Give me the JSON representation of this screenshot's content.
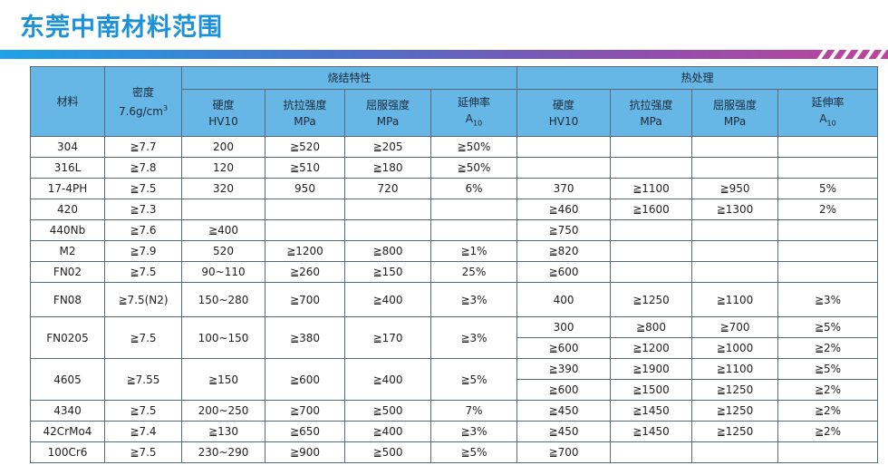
{
  "header": {
    "title": "东莞中南材料范围"
  },
  "table": {
    "columns": {
      "material": "材料",
      "density": {
        "name": "密度",
        "unit": "7.6g/cm",
        "sup": "3"
      },
      "groups": [
        {
          "name": "烧结特性",
          "fields": [
            {
              "name": "硬度",
              "unit": "HV10"
            },
            {
              "name": "抗拉强度",
              "unit": "MPa"
            },
            {
              "name": "屈服强度",
              "unit": "MPa"
            },
            {
              "name": "延伸率",
              "unit": "A",
              "sub": "10"
            }
          ]
        },
        {
          "name": "热处理",
          "fields": [
            {
              "name": "硬度",
              "unit": "HV10"
            },
            {
              "name": "抗拉强度",
              "unit": "MPa"
            },
            {
              "name": "屈服强度",
              "unit": "MPa"
            },
            {
              "name": "延伸率",
              "unit": "A",
              "sub": "10"
            }
          ]
        }
      ]
    },
    "rows": [
      {
        "material": "304",
        "density": "≧7.7",
        "sinter": [
          "200",
          "≧520",
          "≧205",
          "≧50%"
        ],
        "heat": [
          [
            null,
            null,
            null,
            null
          ]
        ]
      },
      {
        "material": "316L",
        "density": "≧7.8",
        "sinter": [
          "120",
          "≧510",
          "≧180",
          "≧50%"
        ],
        "heat": [
          [
            null,
            null,
            null,
            null
          ]
        ]
      },
      {
        "material": "17-4PH",
        "density": "≧7.5",
        "sinter": [
          "320",
          "950",
          "720",
          "6%"
        ],
        "heat": [
          [
            "370",
            "≧1100",
            "≧950",
            "5%"
          ]
        ]
      },
      {
        "material": "420",
        "density": "≧7.3",
        "sinter": [
          null,
          null,
          null,
          null
        ],
        "heat": [
          [
            "≧460",
            "≧1600",
            "≧1300",
            "2%"
          ]
        ]
      },
      {
        "material": "440Nb",
        "density": "≧7.6",
        "sinter": [
          "≧400",
          null,
          null,
          null
        ],
        "heat": [
          [
            "≧750",
            null,
            null,
            null
          ]
        ]
      },
      {
        "material": "M2",
        "density": "≧7.9",
        "sinter": [
          "520",
          "≧1200",
          "≧800",
          "≧1%"
        ],
        "heat": [
          [
            "≧820",
            null,
            null,
            null
          ]
        ]
      },
      {
        "material": "FN02",
        "density": "≧7.5",
        "sinter": [
          "90~110",
          "≧260",
          "≧150",
          "25%"
        ],
        "heat": [
          [
            "≧600",
            null,
            null,
            null
          ]
        ]
      },
      {
        "material": "FN08",
        "density": "≧7.5(N2)",
        "sinter": [
          "150~280",
          "≧700",
          "≧400",
          "≧3%"
        ],
        "heat": [
          [
            "400",
            "≧1250",
            "≧1100",
            "≧3%"
          ]
        ]
      },
      {
        "material": "FN0205",
        "density": "≧7.5",
        "sinter": [
          "100~150",
          "≧380",
          "≧170",
          "≧3%"
        ],
        "heat": [
          [
            "300",
            "≧800",
            "≧700",
            "≧5%"
          ],
          [
            "≧600",
            "≧1200",
            "≧1000",
            "≧2%"
          ]
        ]
      },
      {
        "material": "4605",
        "density": "≧7.55",
        "sinter": [
          "≧150",
          "≧600",
          "≧400",
          "≧5%"
        ],
        "heat": [
          [
            "≧390",
            "≧1900",
            "≧1100",
            "≧5%"
          ],
          [
            "≧600",
            "≧1500",
            "≧1250",
            "≧2%"
          ]
        ]
      },
      {
        "material": "4340",
        "density": "≧7.5",
        "sinter": [
          "200~250",
          "≧700",
          "≧500",
          "7%"
        ],
        "heat": [
          [
            "≧450",
            "≧1450",
            "≧1250",
            "≧2%"
          ]
        ]
      },
      {
        "material": "42CrMo4",
        "density": "≧7.4",
        "sinter": [
          "≧130",
          "≧650",
          "≧400",
          "≧3%"
        ],
        "heat": [
          [
            "≧450",
            "≧1450",
            "≧1250",
            "≧2%"
          ]
        ]
      },
      {
        "material": "100Cr6",
        "density": "≧7.5",
        "sinter": [
          "230~290",
          "≧900",
          "≧500",
          "≧5%"
        ],
        "heat": [
          [
            "≧700",
            null,
            null,
            null
          ]
        ]
      }
    ]
  }
}
